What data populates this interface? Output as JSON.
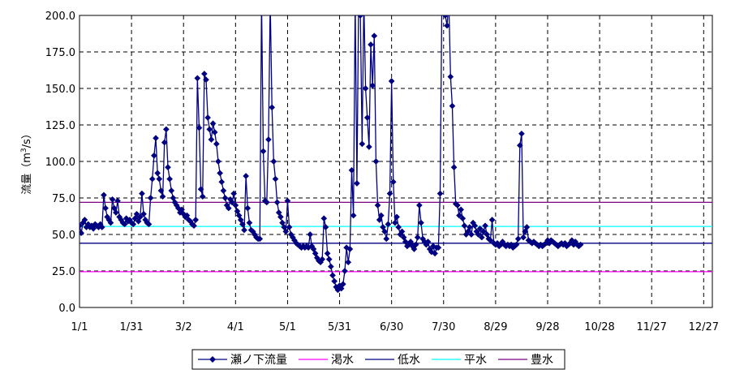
{
  "chart_data": {
    "type": "line",
    "title": "",
    "ylabel": "流量（m3/s）",
    "ylabel_parts": {
      "before": "流量（m",
      "superscript": "3",
      "after": "/s）"
    },
    "xlabel": "",
    "ylim": [
      0,
      200
    ],
    "y_ticks": [
      "0.0",
      "25.0",
      "50.0",
      "75.0",
      "100.0",
      "125.0",
      "150.0",
      "175.0",
      "200.0"
    ],
    "x_domain": [
      1,
      366
    ],
    "x_ticks": [
      {
        "label": "1/1",
        "day": 1
      },
      {
        "label": "1/31",
        "day": 31
      },
      {
        "label": "3/2",
        "day": 61
      },
      {
        "label": "4/1",
        "day": 91
      },
      {
        "label": "5/1",
        "day": 121
      },
      {
        "label": "5/31",
        "day": 151
      },
      {
        "label": "6/30",
        "day": 181
      },
      {
        "label": "7/30",
        "day": 211
      },
      {
        "label": "8/29",
        "day": 241
      },
      {
        "label": "9/28",
        "day": 271
      },
      {
        "label": "10/28",
        "day": 301
      },
      {
        "label": "11/27",
        "day": 331
      },
      {
        "label": "12/27",
        "day": 361
      }
    ],
    "grid": true,
    "legend_position": "bottom",
    "series": [
      {
        "name": "瀬ノ下流量",
        "color": "#000080",
        "marker": "diamond",
        "values": [
          [
            1,
            56
          ],
          [
            2,
            51
          ],
          [
            3,
            58
          ],
          [
            4,
            60
          ],
          [
            5,
            55
          ],
          [
            6,
            57
          ],
          [
            7,
            55
          ],
          [
            8,
            56
          ],
          [
            9,
            54
          ],
          [
            10,
            57
          ],
          [
            11,
            56
          ],
          [
            12,
            55
          ],
          [
            13,
            57
          ],
          [
            14,
            55
          ],
          [
            15,
            77
          ],
          [
            16,
            68
          ],
          [
            17,
            62
          ],
          [
            18,
            60
          ],
          [
            19,
            58
          ],
          [
            20,
            74
          ],
          [
            21,
            68
          ],
          [
            22,
            65
          ],
          [
            23,
            73
          ],
          [
            24,
            62
          ],
          [
            25,
            60
          ],
          [
            26,
            58
          ],
          [
            27,
            57
          ],
          [
            28,
            61
          ],
          [
            29,
            59
          ],
          [
            30,
            60
          ],
          [
            31,
            58
          ],
          [
            32,
            57
          ],
          [
            33,
            61
          ],
          [
            34,
            64
          ],
          [
            35,
            59
          ],
          [
            36,
            62
          ],
          [
            37,
            78
          ],
          [
            38,
            64
          ],
          [
            39,
            60
          ],
          [
            40,
            58
          ],
          [
            41,
            57
          ],
          [
            42,
            75
          ],
          [
            43,
            88
          ],
          [
            44,
            104
          ],
          [
            45,
            116
          ],
          [
            46,
            92
          ],
          [
            47,
            88
          ],
          [
            48,
            80
          ],
          [
            49,
            76
          ],
          [
            50,
            113
          ],
          [
            51,
            122
          ],
          [
            52,
            96
          ],
          [
            53,
            88
          ],
          [
            54,
            80
          ],
          [
            55,
            75
          ],
          [
            56,
            72
          ],
          [
            57,
            70
          ],
          [
            58,
            68
          ],
          [
            59,
            65
          ],
          [
            60,
            67
          ],
          [
            61,
            64
          ],
          [
            62,
            62
          ],
          [
            63,
            63
          ],
          [
            64,
            60
          ],
          [
            65,
            59
          ],
          [
            66,
            57
          ],
          [
            67,
            56
          ],
          [
            68,
            60
          ],
          [
            69,
            157
          ],
          [
            70,
            123
          ],
          [
            71,
            81
          ],
          [
            72,
            76
          ],
          [
            73,
            160
          ],
          [
            74,
            156
          ],
          [
            75,
            130
          ],
          [
            76,
            122
          ],
          [
            77,
            115
          ],
          [
            78,
            126
          ],
          [
            79,
            120
          ],
          [
            80,
            112
          ],
          [
            81,
            100
          ],
          [
            82,
            92
          ],
          [
            83,
            86
          ],
          [
            84,
            80
          ],
          [
            85,
            75
          ],
          [
            86,
            70
          ],
          [
            87,
            68
          ],
          [
            88,
            74
          ],
          [
            89,
            72
          ],
          [
            90,
            78
          ],
          [
            91,
            70
          ],
          [
            92,
            66
          ],
          [
            93,
            63
          ],
          [
            94,
            60
          ],
          [
            95,
            57
          ],
          [
            96,
            53
          ],
          [
            97,
            90
          ],
          [
            98,
            68
          ],
          [
            99,
            58
          ],
          [
            100,
            53
          ],
          [
            101,
            52
          ],
          [
            102,
            50
          ],
          [
            103,
            48
          ],
          [
            104,
            47
          ],
          [
            105,
            47
          ],
          [
            106,
            210
          ],
          [
            107,
            107
          ],
          [
            108,
            73
          ],
          [
            109,
            72
          ],
          [
            110,
            115
          ],
          [
            111,
            210
          ],
          [
            112,
            137
          ],
          [
            113,
            100
          ],
          [
            114,
            88
          ],
          [
            115,
            72
          ],
          [
            116,
            65
          ],
          [
            117,
            62
          ],
          [
            118,
            58
          ],
          [
            119,
            55
          ],
          [
            120,
            52
          ],
          [
            121,
            73
          ],
          [
            122,
            55
          ],
          [
            123,
            50
          ],
          [
            124,
            48
          ],
          [
            125,
            46
          ],
          [
            126,
            44
          ],
          [
            127,
            43
          ],
          [
            128,
            42
          ],
          [
            129,
            41
          ],
          [
            130,
            42
          ],
          [
            131,
            41
          ],
          [
            132,
            42
          ],
          [
            133,
            41
          ],
          [
            134,
            50
          ],
          [
            135,
            42
          ],
          [
            136,
            40
          ],
          [
            137,
            37
          ],
          [
            138,
            34
          ],
          [
            139,
            32
          ],
          [
            140,
            31
          ],
          [
            141,
            33
          ],
          [
            142,
            61
          ],
          [
            143,
            55
          ],
          [
            144,
            37
          ],
          [
            145,
            33
          ],
          [
            146,
            28
          ],
          [
            147,
            22
          ],
          [
            148,
            18
          ],
          [
            149,
            14
          ],
          [
            150,
            12
          ],
          [
            151,
            15
          ],
          [
            152,
            13
          ],
          [
            153,
            16
          ],
          [
            154,
            25
          ],
          [
            155,
            41
          ],
          [
            156,
            31
          ],
          [
            157,
            40
          ],
          [
            158,
            94
          ],
          [
            159,
            63
          ],
          [
            160,
            210
          ],
          [
            161,
            85
          ],
          [
            162,
            210
          ],
          [
            163,
            200
          ],
          [
            164,
            112
          ],
          [
            165,
            210
          ],
          [
            166,
            150
          ],
          [
            167,
            130
          ],
          [
            168,
            110
          ],
          [
            169,
            180
          ],
          [
            170,
            152
          ],
          [
            171,
            186
          ],
          [
            172,
            100
          ],
          [
            173,
            70
          ],
          [
            174,
            60
          ],
          [
            175,
            63
          ],
          [
            176,
            55
          ],
          [
            177,
            52
          ],
          [
            178,
            47
          ],
          [
            179,
            57
          ],
          [
            180,
            78
          ],
          [
            181,
            155
          ],
          [
            182,
            86
          ],
          [
            183,
            58
          ],
          [
            184,
            62
          ],
          [
            185,
            55
          ],
          [
            186,
            50
          ],
          [
            187,
            52
          ],
          [
            188,
            48
          ],
          [
            189,
            45
          ],
          [
            190,
            42
          ],
          [
            191,
            43
          ],
          [
            192,
            45
          ],
          [
            193,
            42
          ],
          [
            194,
            40
          ],
          [
            195,
            43
          ],
          [
            196,
            48
          ],
          [
            197,
            70
          ],
          [
            198,
            58
          ],
          [
            199,
            47
          ],
          [
            200,
            45
          ],
          [
            201,
            43
          ],
          [
            202,
            45
          ],
          [
            203,
            40
          ],
          [
            204,
            38
          ],
          [
            205,
            42
          ],
          [
            206,
            37
          ],
          [
            207,
            41
          ],
          [
            208,
            41
          ],
          [
            209,
            78
          ],
          [
            210,
            210
          ],
          [
            211,
            210
          ],
          [
            212,
            200
          ],
          [
            213,
            193
          ],
          [
            214,
            210
          ],
          [
            215,
            158
          ],
          [
            216,
            138
          ],
          [
            217,
            96
          ],
          [
            218,
            71
          ],
          [
            219,
            70
          ],
          [
            220,
            63
          ],
          [
            221,
            67
          ],
          [
            222,
            61
          ],
          [
            223,
            56
          ],
          [
            224,
            50
          ],
          [
            225,
            52
          ],
          [
            226,
            55
          ],
          [
            227,
            50
          ],
          [
            228,
            58
          ],
          [
            229,
            56
          ],
          [
            230,
            52
          ],
          [
            231,
            50
          ],
          [
            232,
            54
          ],
          [
            233,
            48
          ],
          [
            234,
            52
          ],
          [
            235,
            56
          ],
          [
            236,
            50
          ],
          [
            237,
            47
          ],
          [
            238,
            46
          ],
          [
            239,
            60
          ],
          [
            240,
            44
          ],
          [
            241,
            43
          ],
          [
            242,
            44
          ],
          [
            243,
            42
          ],
          [
            244,
            43
          ],
          [
            245,
            45
          ],
          [
            246,
            43
          ],
          [
            247,
            42
          ],
          [
            248,
            43
          ],
          [
            249,
            42
          ],
          [
            250,
            43
          ],
          [
            251,
            41
          ],
          [
            252,
            42
          ],
          [
            253,
            43
          ],
          [
            254,
            47
          ],
          [
            255,
            111
          ],
          [
            256,
            119
          ],
          [
            257,
            48
          ],
          [
            258,
            52
          ],
          [
            259,
            55
          ],
          [
            260,
            46
          ],
          [
            261,
            45
          ],
          [
            262,
            44
          ],
          [
            263,
            45
          ],
          [
            264,
            44
          ],
          [
            265,
            43
          ],
          [
            266,
            42
          ],
          [
            267,
            43
          ],
          [
            268,
            42
          ],
          [
            269,
            43
          ],
          [
            270,
            44
          ],
          [
            271,
            46
          ],
          [
            272,
            44
          ],
          [
            273,
            46
          ],
          [
            274,
            45
          ],
          [
            275,
            44
          ],
          [
            276,
            43
          ],
          [
            277,
            42
          ],
          [
            278,
            43
          ],
          [
            279,
            44
          ],
          [
            280,
            43
          ],
          [
            281,
            44
          ],
          [
            282,
            42
          ],
          [
            283,
            43
          ],
          [
            284,
            44
          ],
          [
            285,
            46
          ],
          [
            286,
            43
          ],
          [
            287,
            45
          ],
          [
            288,
            43
          ],
          [
            289,
            42
          ],
          [
            290,
            43
          ]
        ]
      },
      {
        "name": "渇水",
        "color": "#ff00ff",
        "marker": "none",
        "constant": 24.5
      },
      {
        "name": "低水",
        "color": "#000080",
        "marker": "none",
        "constant": 44.0
      },
      {
        "name": "平水",
        "color": "#00ffff",
        "marker": "none",
        "constant": 55.5
      },
      {
        "name": "豊水",
        "color": "#800080",
        "marker": "none",
        "constant": 72.0
      }
    ]
  }
}
